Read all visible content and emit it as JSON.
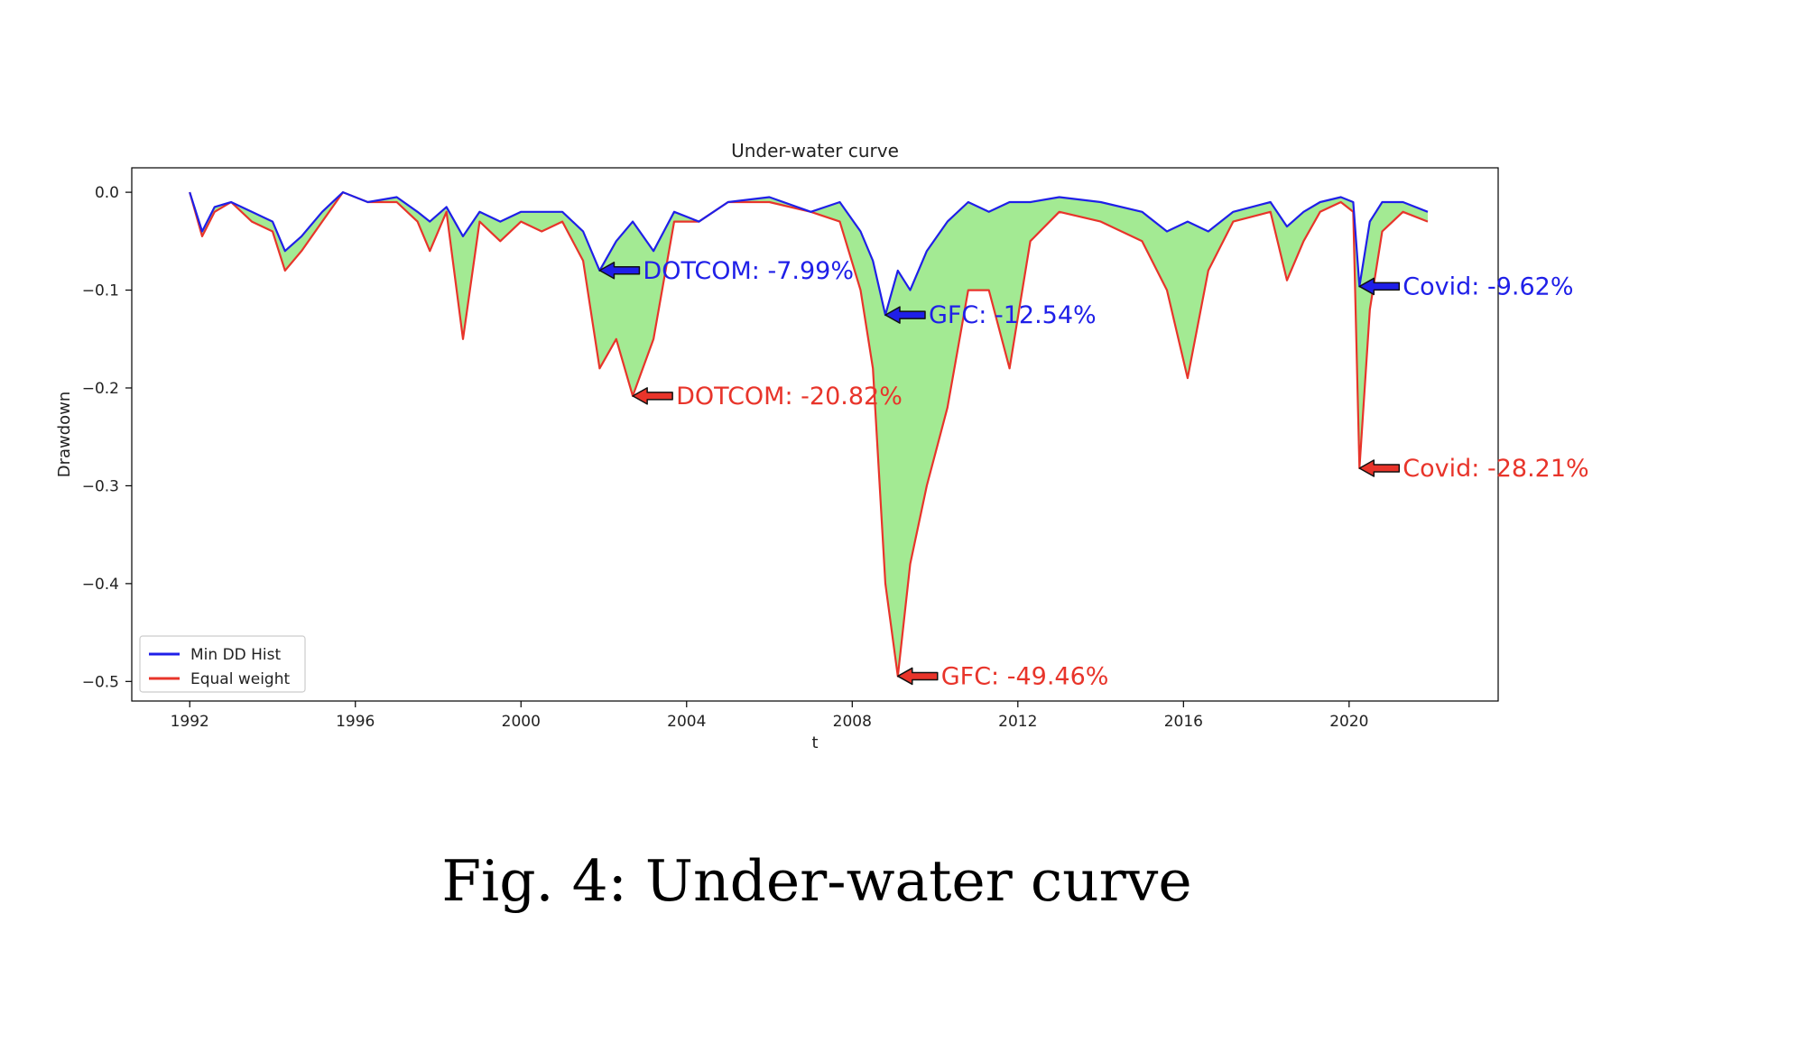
{
  "caption": "Fig. 4: Under-water curve",
  "colors": {
    "series_a": "#1f1fe8",
    "series_b": "#e8342a",
    "fill": "#a3ea93",
    "axes": "#000000"
  },
  "chart_data": {
    "type": "line",
    "title": "Under-water curve",
    "xlabel": "t",
    "ylabel": "Drawdown",
    "xlim": [
      1990.6,
      2023.6
    ],
    "ylim": [
      -0.52,
      0.025
    ],
    "x_ticks": [
      1992,
      1996,
      2000,
      2004,
      2008,
      2012,
      2016,
      2020
    ],
    "x_tick_labels": [
      "1992",
      "1996",
      "2000",
      "2004",
      "2008",
      "2012",
      "2016",
      "2020"
    ],
    "y_ticks": [
      0.0,
      -0.1,
      -0.2,
      -0.3,
      -0.4,
      -0.5
    ],
    "y_tick_labels": [
      "0.0",
      "−0.1",
      "−0.2",
      "−0.3",
      "−0.4",
      "−0.5"
    ],
    "grid": false,
    "legend_position": "lower-left",
    "fill_between_series": true,
    "series": [
      {
        "name": "Min DD Hist",
        "color": "#1f1fe8",
        "x": [
          1992.0,
          1992.3,
          1992.6,
          1993.0,
          1993.5,
          1994.0,
          1994.3,
          1994.7,
          1995.2,
          1995.7,
          1996.3,
          1997.0,
          1997.5,
          1997.8,
          1998.2,
          1998.6,
          1999.0,
          1999.5,
          2000.0,
          2000.5,
          2001.0,
          2001.5,
          2001.9,
          2002.3,
          2002.7,
          2003.2,
          2003.7,
          2004.3,
          2005.0,
          2006.0,
          2007.0,
          2007.7,
          2008.2,
          2008.5,
          2008.8,
          2009.1,
          2009.4,
          2009.8,
          2010.3,
          2010.8,
          2011.3,
          2011.8,
          2012.3,
          2013.0,
          2014.0,
          2015.0,
          2015.6,
          2016.1,
          2016.6,
          2017.2,
          2018.1,
          2018.5,
          2018.9,
          2019.3,
          2019.8,
          2020.1,
          2020.25,
          2020.5,
          2020.8,
          2021.3,
          2021.9
        ],
        "y": [
          0.0,
          -0.04,
          -0.015,
          -0.01,
          -0.02,
          -0.03,
          -0.06,
          -0.045,
          -0.02,
          0.0,
          -0.01,
          -0.005,
          -0.02,
          -0.03,
          -0.015,
          -0.045,
          -0.02,
          -0.03,
          -0.02,
          -0.02,
          -0.02,
          -0.04,
          -0.08,
          -0.05,
          -0.03,
          -0.06,
          -0.02,
          -0.03,
          -0.01,
          -0.005,
          -0.02,
          -0.01,
          -0.04,
          -0.07,
          -0.1254,
          -0.08,
          -0.1,
          -0.06,
          -0.03,
          -0.01,
          -0.02,
          -0.01,
          -0.01,
          -0.005,
          -0.01,
          -0.02,
          -0.04,
          -0.03,
          -0.04,
          -0.02,
          -0.01,
          -0.035,
          -0.02,
          -0.01,
          -0.005,
          -0.01,
          -0.0962,
          -0.03,
          -0.01,
          -0.01,
          -0.02
        ]
      },
      {
        "name": "Equal weight",
        "color": "#e8342a",
        "x": [
          1992.0,
          1992.3,
          1992.6,
          1993.0,
          1993.5,
          1994.0,
          1994.3,
          1994.7,
          1995.2,
          1995.7,
          1996.3,
          1997.0,
          1997.5,
          1997.8,
          1998.2,
          1998.6,
          1999.0,
          1999.5,
          2000.0,
          2000.5,
          2001.0,
          2001.5,
          2001.9,
          2002.3,
          2002.7,
          2003.2,
          2003.7,
          2004.3,
          2005.0,
          2006.0,
          2007.0,
          2007.7,
          2008.2,
          2008.5,
          2008.8,
          2009.1,
          2009.4,
          2009.8,
          2010.3,
          2010.8,
          2011.3,
          2011.8,
          2012.3,
          2013.0,
          2014.0,
          2015.0,
          2015.6,
          2016.1,
          2016.6,
          2017.2,
          2018.1,
          2018.5,
          2018.9,
          2019.3,
          2019.8,
          2020.1,
          2020.25,
          2020.5,
          2020.8,
          2021.3,
          2021.9
        ],
        "y": [
          0.0,
          -0.045,
          -0.02,
          -0.01,
          -0.03,
          -0.04,
          -0.08,
          -0.06,
          -0.03,
          0.0,
          -0.01,
          -0.01,
          -0.03,
          -0.06,
          -0.02,
          -0.15,
          -0.03,
          -0.05,
          -0.03,
          -0.04,
          -0.03,
          -0.07,
          -0.18,
          -0.15,
          -0.2082,
          -0.15,
          -0.03,
          -0.03,
          -0.01,
          -0.01,
          -0.02,
          -0.03,
          -0.1,
          -0.18,
          -0.4,
          -0.4946,
          -0.38,
          -0.3,
          -0.22,
          -0.1,
          -0.1,
          -0.18,
          -0.05,
          -0.02,
          -0.03,
          -0.05,
          -0.1,
          -0.19,
          -0.08,
          -0.03,
          -0.02,
          -0.09,
          -0.05,
          -0.02,
          -0.01,
          -0.02,
          -0.2821,
          -0.12,
          -0.04,
          -0.02,
          -0.03
        ]
      }
    ],
    "annotations": [
      {
        "text": "DOTCOM: -7.99%",
        "x": 2001.9,
        "y": -0.0799,
        "series": "Min DD Hist"
      },
      {
        "text": "DOTCOM: -20.82%",
        "x": 2002.7,
        "y": -0.2082,
        "series": "Equal weight"
      },
      {
        "text": "GFC: -12.54%",
        "x": 2008.8,
        "y": -0.1254,
        "series": "Min DD Hist"
      },
      {
        "text": "GFC: -49.46%",
        "x": 2009.1,
        "y": -0.4946,
        "series": "Equal weight"
      },
      {
        "text": "Covid: -9.62%",
        "x": 2020.25,
        "y": -0.0962,
        "series": "Min DD Hist"
      },
      {
        "text": "Covid: -28.21%",
        "x": 2020.25,
        "y": -0.2821,
        "series": "Equal weight"
      }
    ]
  }
}
